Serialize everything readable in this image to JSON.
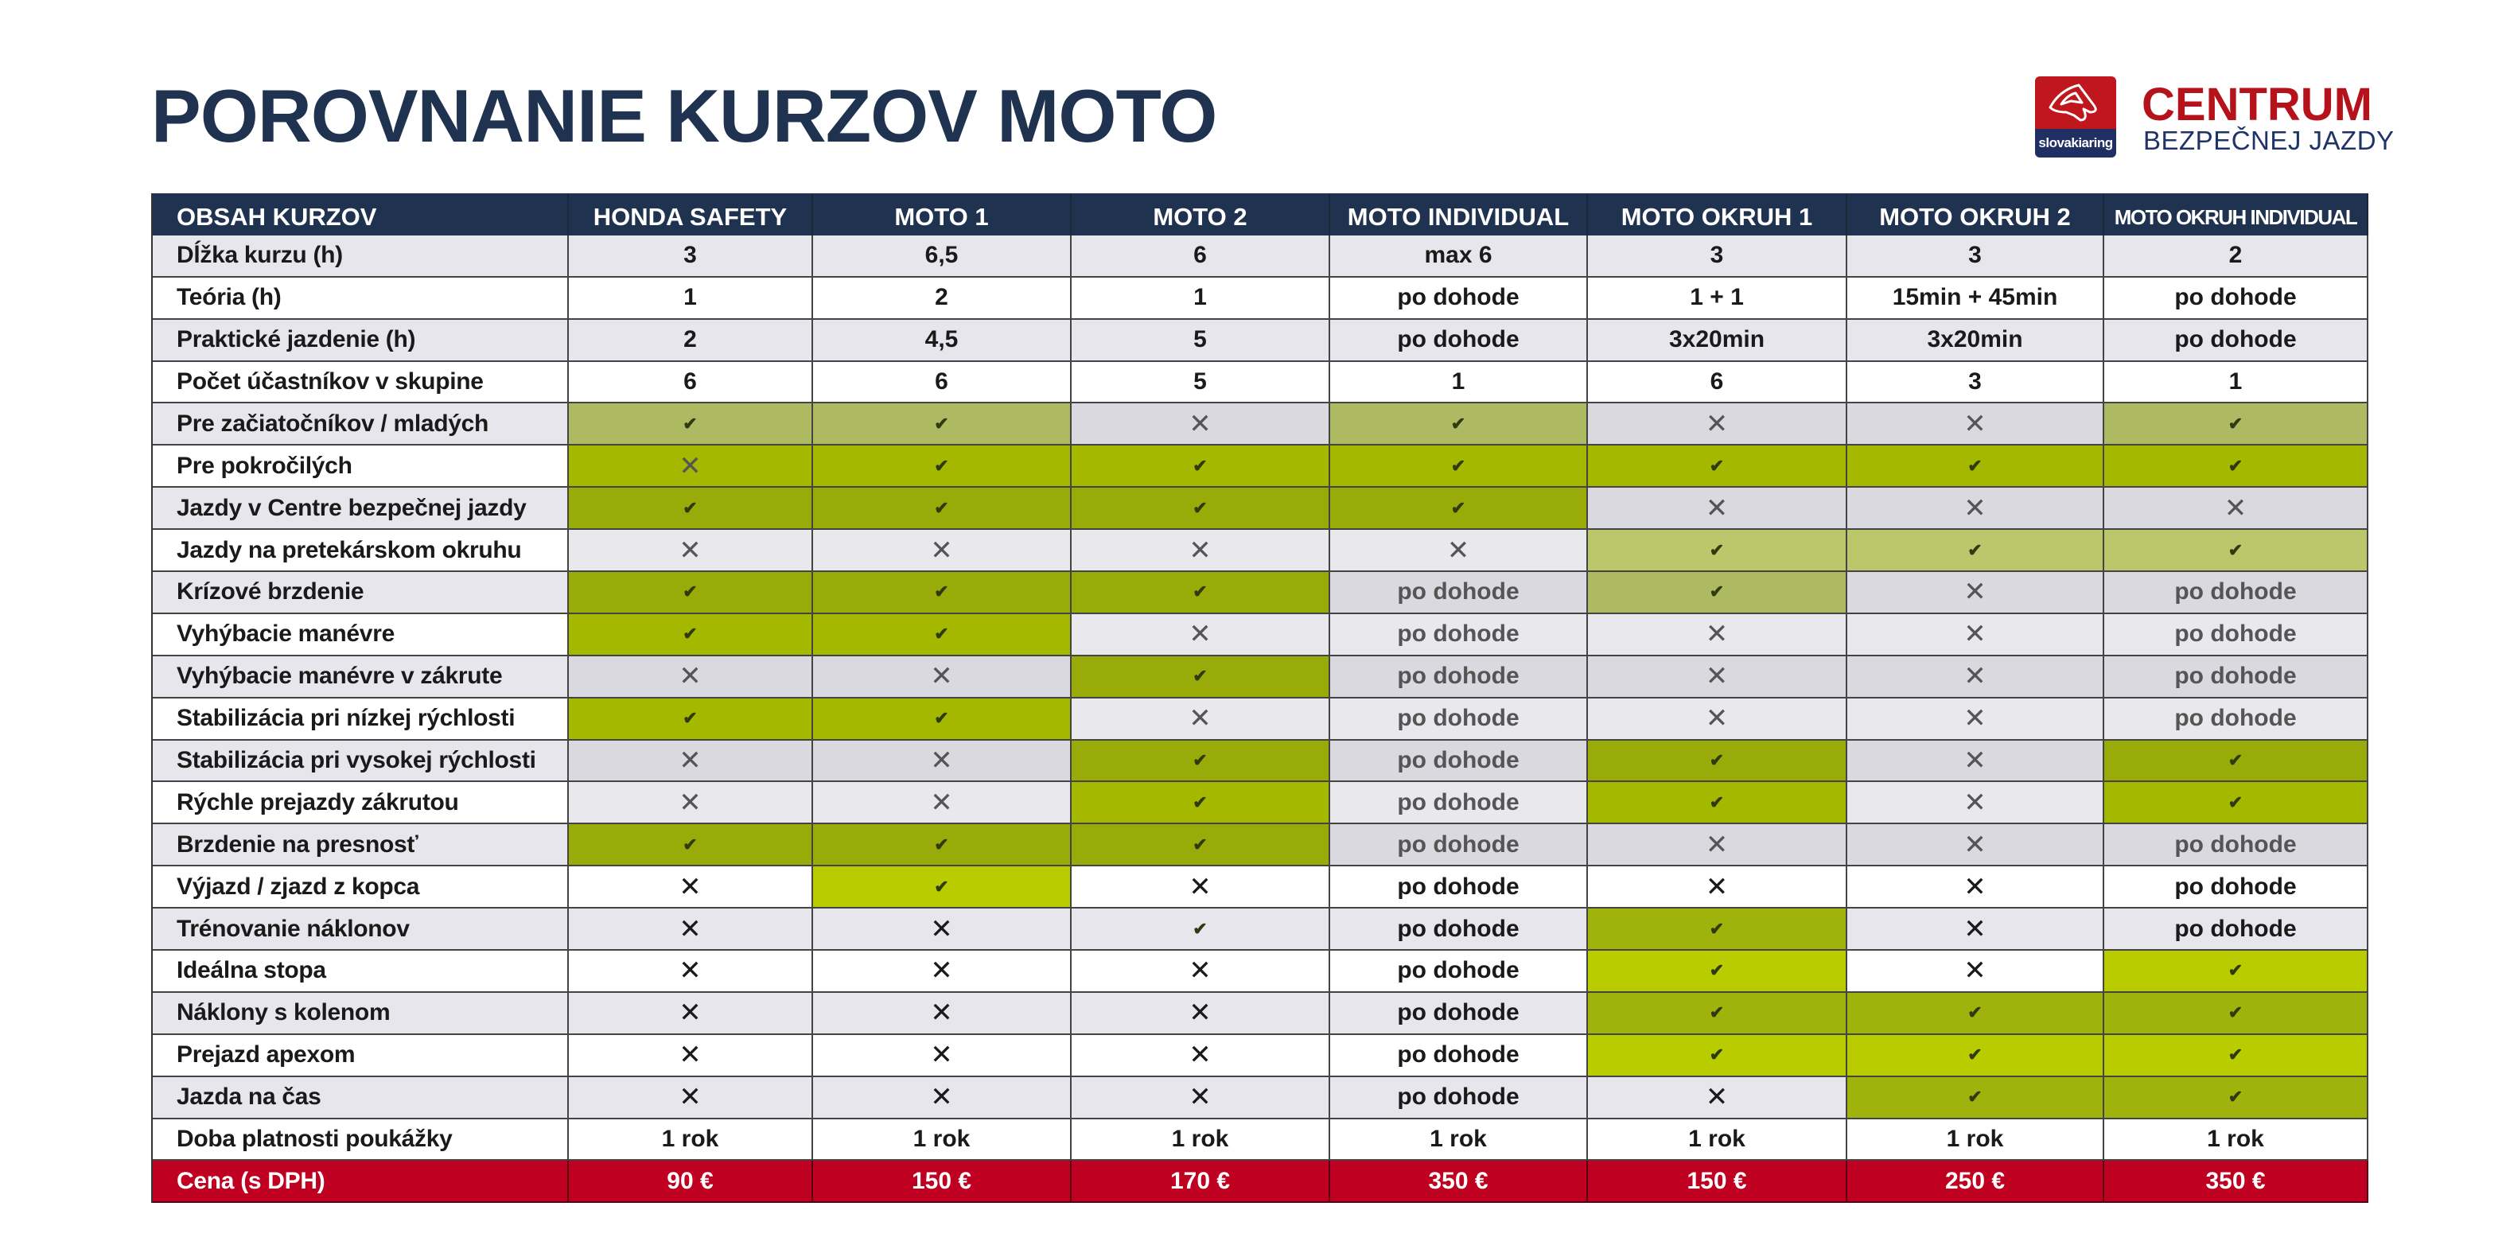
{
  "title": "POROVNANIE KURZOV MOTO",
  "logo": {
    "badge_text": "slovakiaring",
    "line1": "CENTRUM",
    "line2": "BEZPEČNEJ JAZDY"
  },
  "colors": {
    "header_bg": "#1f3350",
    "price_bg": "#c00020",
    "brand_red": "#b5121b",
    "brand_blue": "#1f3367"
  },
  "table": {
    "headers": [
      "OBSAH KURZOV",
      "HONDA SAFETY",
      "MOTO 1",
      "MOTO 2",
      "MOTO INDIVIDUAL",
      "MOTO OKRUH 1",
      "MOTO OKRUH 2",
      "MOTO OKRUH INDIVIDUAL"
    ],
    "rows": [
      {
        "label": "Dĺžka kurzu (h)",
        "label_bg": "#e6e6ec",
        "text_color": "#1a1a1a",
        "cells": [
          [
            "3",
            "#e6e6ec"
          ],
          [
            "6,5",
            "#e6e6ec"
          ],
          [
            "6",
            "#e6e6ec"
          ],
          [
            "max 6",
            "#e6e6ec"
          ],
          [
            "3",
            "#e6e6ec"
          ],
          [
            "3",
            "#e6e6ec"
          ],
          [
            "2",
            "#e6e6ec"
          ]
        ]
      },
      {
        "label": "Teória (h)",
        "label_bg": "#ffffff",
        "text_color": "#1a1a1a",
        "cells": [
          [
            "1",
            "#ffffff"
          ],
          [
            "2",
            "#ffffff"
          ],
          [
            "1",
            "#ffffff"
          ],
          [
            "po dohode",
            "#ffffff"
          ],
          [
            "1 + 1",
            "#ffffff"
          ],
          [
            "15min + 45min",
            "#ffffff"
          ],
          [
            "po dohode",
            "#ffffff"
          ]
        ]
      },
      {
        "label": "Praktické jazdenie (h)",
        "label_bg": "#e6e6ec",
        "text_color": "#1a1a1a",
        "cells": [
          [
            "2",
            "#e6e6ec"
          ],
          [
            "4,5",
            "#e6e6ec"
          ],
          [
            "5",
            "#e6e6ec"
          ],
          [
            "po dohode",
            "#e6e6ec"
          ],
          [
            "3x20min",
            "#e6e6ec"
          ],
          [
            "3x20min",
            "#e6e6ec"
          ],
          [
            "po dohode",
            "#e6e6ec"
          ]
        ]
      },
      {
        "label": "Počet účastníkov v skupine",
        "label_bg": "#ffffff",
        "text_color": "#1a1a1a",
        "cells": [
          [
            "6",
            "#ffffff"
          ],
          [
            "6",
            "#ffffff"
          ],
          [
            "5",
            "#ffffff"
          ],
          [
            "1",
            "#ffffff"
          ],
          [
            "6",
            "#ffffff"
          ],
          [
            "3",
            "#ffffff"
          ],
          [
            "1",
            "#ffffff"
          ]
        ]
      },
      {
        "label": "Pre začiatočníkov / mladých",
        "label_bg": "#e6e6ec",
        "text_color": "#555555",
        "cells": [
          [
            "check",
            "#adba62"
          ],
          [
            "check",
            "#adba62"
          ],
          [
            "x",
            "#d9d9df"
          ],
          [
            "check",
            "#adba62"
          ],
          [
            "x",
            "#d9d9df"
          ],
          [
            "x",
            "#d9d9df"
          ],
          [
            "check",
            "#adba62"
          ]
        ]
      },
      {
        "label": "Pre pokročilých",
        "label_bg": "#ffffff",
        "text_color": "#555555",
        "cells": [
          [
            "x",
            "#a5b800"
          ],
          [
            "check",
            "#a5b800"
          ],
          [
            "check",
            "#a5b800"
          ],
          [
            "check",
            "#a5b800"
          ],
          [
            "check",
            "#a5b800"
          ],
          [
            "check",
            "#a5b800"
          ],
          [
            "check",
            "#a5b800"
          ]
        ]
      },
      {
        "label": "Jazdy v Centre bezpečnej jazdy",
        "label_bg": "#e6e6ec",
        "text_color": "#555555",
        "cells": [
          [
            "check",
            "#98ab08"
          ],
          [
            "check",
            "#98ab08"
          ],
          [
            "check",
            "#98ab08"
          ],
          [
            "check",
            "#98ab08"
          ],
          [
            "x",
            "#d9d9df"
          ],
          [
            "x",
            "#d9d9df"
          ],
          [
            "x",
            "#d9d9df"
          ]
        ]
      },
      {
        "label": "Jazdy na pretekárskom okruhu",
        "label_bg": "#ffffff",
        "text_color": "#555555",
        "cells": [
          [
            "x",
            "#e9e9ed"
          ],
          [
            "x",
            "#e9e9ed"
          ],
          [
            "x",
            "#e9e9ed"
          ],
          [
            "x",
            "#e9e9ed"
          ],
          [
            "check",
            "#bbc76a"
          ],
          [
            "check",
            "#bbc76a"
          ],
          [
            "check",
            "#bbc76a"
          ]
        ]
      },
      {
        "label": "Krízové brzdenie",
        "label_bg": "#e6e6ec",
        "text_color": "#555555",
        "cells": [
          [
            "check",
            "#98ab08"
          ],
          [
            "check",
            "#98ab08"
          ],
          [
            "check",
            "#98ab08"
          ],
          [
            "po dohode",
            "#d9d9df"
          ],
          [
            "check",
            "#adba62"
          ],
          [
            "x",
            "#d9d9df"
          ],
          [
            "po dohode",
            "#d9d9df"
          ]
        ]
      },
      {
        "label": "Vyhýbacie manévre",
        "label_bg": "#ffffff",
        "text_color": "#555555",
        "cells": [
          [
            "check",
            "#a5b800"
          ],
          [
            "check",
            "#a5b800"
          ],
          [
            "x",
            "#e9e9ed"
          ],
          [
            "po dohode",
            "#e9e9ed"
          ],
          [
            "x",
            "#e9e9ed"
          ],
          [
            "x",
            "#e9e9ed"
          ],
          [
            "po dohode",
            "#e9e9ed"
          ]
        ]
      },
      {
        "label": "Vyhýbacie manévre v zákrute",
        "label_bg": "#e6e6ec",
        "text_color": "#555555",
        "cells": [
          [
            "x",
            "#d9d9df"
          ],
          [
            "x",
            "#d9d9df"
          ],
          [
            "check",
            "#98ab08"
          ],
          [
            "po dohode",
            "#d9d9df"
          ],
          [
            "x",
            "#d9d9df"
          ],
          [
            "x",
            "#d9d9df"
          ],
          [
            "po dohode",
            "#d9d9df"
          ]
        ]
      },
      {
        "label": "Stabilizácia pri nízkej rýchlosti",
        "label_bg": "#ffffff",
        "text_color": "#555555",
        "cells": [
          [
            "check",
            "#a5b800"
          ],
          [
            "check",
            "#a5b800"
          ],
          [
            "x",
            "#e9e9ed"
          ],
          [
            "po dohode",
            "#e9e9ed"
          ],
          [
            "x",
            "#e9e9ed"
          ],
          [
            "x",
            "#e9e9ed"
          ],
          [
            "po dohode",
            "#e9e9ed"
          ]
        ]
      },
      {
        "label": "Stabilizácia pri vysokej rýchlosti",
        "label_bg": "#e6e6ec",
        "text_color": "#555555",
        "cells": [
          [
            "x",
            "#d9d9df"
          ],
          [
            "x",
            "#d9d9df"
          ],
          [
            "check",
            "#98ab08"
          ],
          [
            "po dohode",
            "#d9d9df"
          ],
          [
            "check",
            "#98ab08"
          ],
          [
            "x",
            "#d9d9df"
          ],
          [
            "check",
            "#98ab08"
          ]
        ]
      },
      {
        "label": "Rýchle prejazdy zákrutou",
        "label_bg": "#ffffff",
        "text_color": "#555555",
        "cells": [
          [
            "x",
            "#e9e9ed"
          ],
          [
            "x",
            "#e9e9ed"
          ],
          [
            "check",
            "#a5b800"
          ],
          [
            "po dohode",
            "#e9e9ed"
          ],
          [
            "check",
            "#a5b800"
          ],
          [
            "x",
            "#e9e9ed"
          ],
          [
            "check",
            "#a5b800"
          ]
        ]
      },
      {
        "label": "Brzdenie na presnosť",
        "label_bg": "#e6e6ec",
        "text_color": "#555555",
        "cells": [
          [
            "check",
            "#98ab08"
          ],
          [
            "check",
            "#98ab08"
          ],
          [
            "check",
            "#98ab08"
          ],
          [
            "po dohode",
            "#d9d9df"
          ],
          [
            "x",
            "#d9d9df"
          ],
          [
            "x",
            "#d9d9df"
          ],
          [
            "po dohode",
            "#d9d9df"
          ]
        ]
      },
      {
        "label": "Výjazd / zjazd z kopca",
        "label_bg": "#ffffff",
        "text_color": "#1a1a1a",
        "cells": [
          [
            "x",
            "#ffffff"
          ],
          [
            "check",
            "#b8cc00"
          ],
          [
            "x",
            "#ffffff"
          ],
          [
            "po dohode",
            "#ffffff"
          ],
          [
            "x",
            "#ffffff"
          ],
          [
            "x",
            "#ffffff"
          ],
          [
            "po dohode",
            "#ffffff"
          ]
        ]
      },
      {
        "label": "Trénovanie náklonov",
        "label_bg": "#e6e6ec",
        "text_color": "#1a1a1a",
        "cells": [
          [
            "x",
            "#e6e6ec"
          ],
          [
            "x",
            "#e6e6ec"
          ],
          [
            "check",
            "#e6e6ec"
          ],
          [
            "po dohode",
            "#e6e6ec"
          ],
          [
            "check",
            "#a0b20c"
          ],
          [
            "x",
            "#e6e6ec"
          ],
          [
            "po dohode",
            "#e6e6ec"
          ]
        ]
      },
      {
        "label": "Ideálna stopa",
        "label_bg": "#ffffff",
        "text_color": "#1a1a1a",
        "cells": [
          [
            "x",
            "#ffffff"
          ],
          [
            "x",
            "#ffffff"
          ],
          [
            "x",
            "#ffffff"
          ],
          [
            "po dohode",
            "#ffffff"
          ],
          [
            "check",
            "#b8cc00"
          ],
          [
            "x",
            "#ffffff"
          ],
          [
            "check",
            "#b8cc00"
          ]
        ]
      },
      {
        "label": "Náklony  s kolenom",
        "label_bg": "#e6e6ec",
        "text_color": "#1a1a1a",
        "cells": [
          [
            "x",
            "#e6e6ec"
          ],
          [
            "x",
            "#e6e6ec"
          ],
          [
            "x",
            "#e6e6ec"
          ],
          [
            "po dohode",
            "#e6e6ec"
          ],
          [
            "check",
            "#a0b20c"
          ],
          [
            "check",
            "#a0b20c"
          ],
          [
            "check",
            "#a0b20c"
          ]
        ]
      },
      {
        "label": "Prejazd apexom",
        "label_bg": "#ffffff",
        "text_color": "#1a1a1a",
        "cells": [
          [
            "x",
            "#ffffff"
          ],
          [
            "x",
            "#ffffff"
          ],
          [
            "x",
            "#ffffff"
          ],
          [
            "po dohode",
            "#ffffff"
          ],
          [
            "check",
            "#b8cc00"
          ],
          [
            "check",
            "#b8cc00"
          ],
          [
            "check",
            "#b8cc00"
          ]
        ]
      },
      {
        "label": "Jazda na čas",
        "label_bg": "#e6e6ec",
        "text_color": "#1a1a1a",
        "cells": [
          [
            "x",
            "#e6e6ec"
          ],
          [
            "x",
            "#e6e6ec"
          ],
          [
            "x",
            "#e6e6ec"
          ],
          [
            "po dohode",
            "#e6e6ec"
          ],
          [
            "x",
            "#e6e6ec"
          ],
          [
            "check",
            "#a0b20c"
          ],
          [
            "check",
            "#a0b20c"
          ]
        ]
      },
      {
        "label": "Doba platnosti poukážky",
        "label_bg": "#ffffff",
        "text_color": "#1a1a1a",
        "cells": [
          [
            "1 rok",
            "#ffffff"
          ],
          [
            "1 rok",
            "#ffffff"
          ],
          [
            "1 rok",
            "#ffffff"
          ],
          [
            "1 rok",
            "#ffffff"
          ],
          [
            "1 rok",
            "#ffffff"
          ],
          [
            "1 rok",
            "#ffffff"
          ],
          [
            "1 rok",
            "#ffffff"
          ]
        ]
      }
    ],
    "price": {
      "label": "Cena (s DPH)",
      "values": [
        "90 €",
        "150 €",
        "170 €",
        "350 €",
        "150 €",
        "250 €",
        "350 €"
      ]
    }
  }
}
